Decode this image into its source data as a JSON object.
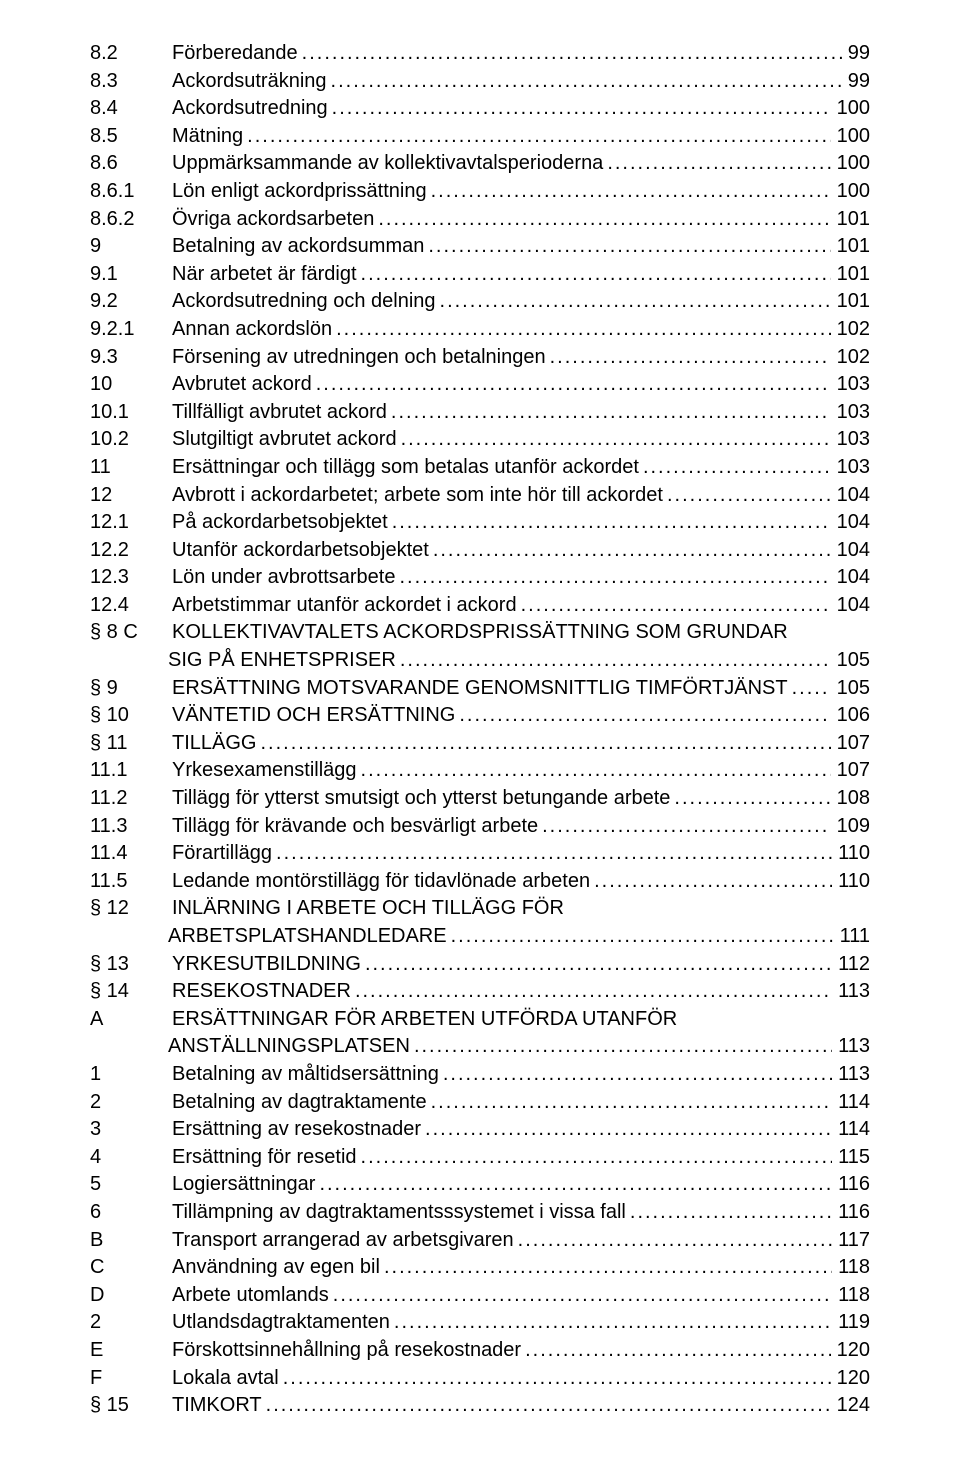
{
  "toc": [
    {
      "num": "8.2",
      "title": "Förberedande",
      "page": "99"
    },
    {
      "num": "8.3",
      "title": "Ackordsuträkning",
      "page": "99"
    },
    {
      "num": "8.4",
      "title": "Ackordsutredning",
      "page": "100"
    },
    {
      "num": "8.5",
      "title": "Mätning",
      "page": "100"
    },
    {
      "num": "8.6",
      "title": "Uppmärksammande av kollektivavtalsperioderna",
      "page": "100"
    },
    {
      "num": "8.6.1",
      "title": "Lön enligt ackordprissättning",
      "page": "100"
    },
    {
      "num": "8.6.2",
      "title": "Övriga ackordsarbeten",
      "page": "101"
    },
    {
      "num": "9",
      "title": "Betalning av ackordsumman",
      "page": "101"
    },
    {
      "num": "9.1",
      "title": "När arbetet är färdigt",
      "page": "101"
    },
    {
      "num": "9.2",
      "title": "Ackordsutredning och delning",
      "page": "101"
    },
    {
      "num": "9.2.1",
      "title": "Annan ackordslön",
      "page": "102"
    },
    {
      "num": "9.3",
      "title": "Försening av utredningen och betalningen",
      "page": "102"
    },
    {
      "num": "10",
      "title": "Avbrutet ackord",
      "page": "103"
    },
    {
      "num": "10.1",
      "title": "Tillfälligt avbrutet ackord",
      "page": "103"
    },
    {
      "num": "10.2",
      "title": "Slutgiltigt avbrutet ackord",
      "page": "103"
    },
    {
      "num": "11",
      "title": "Ersättningar och tillägg som betalas utanför ackordet",
      "page": "103"
    },
    {
      "num": "12",
      "title": "Avbrott i ackordarbetet; arbete som inte hör till ackordet",
      "page": "104"
    },
    {
      "num": "12.1",
      "title": "På ackordarbetsobjektet",
      "page": "104"
    },
    {
      "num": "12.2",
      "title": "Utanför ackordarbetsobjektet",
      "page": "104"
    },
    {
      "num": "12.3",
      "title": "Lön under avbrottsarbete",
      "page": "104"
    },
    {
      "num": "12.4",
      "title": "Arbetstimmar utanför ackordet i ackord",
      "page": "104"
    },
    {
      "num": "§ 8 C",
      "title": "KOLLEKTIVAVTALETS ACKORDSPRISSÄTTNING SOM GRUNDAR",
      "cont": "SIG PÅ ENHETSPRISER",
      "page": "105"
    },
    {
      "num": "§ 9",
      "title": "ERSÄTTNING MOTSVARANDE GENOMSNITTLIG TIMFÖRTJÄNST",
      "page": "105"
    },
    {
      "num": "§ 10",
      "title": "VÄNTETID OCH ERSÄTTNING",
      "page": "106"
    },
    {
      "num": "§ 11",
      "title": "TILLÄGG",
      "page": "107"
    },
    {
      "num": "11.1",
      "title": "Yrkesexamenstillägg",
      "page": "107"
    },
    {
      "num": "11.2",
      "title": "Tillägg för ytterst smutsigt och ytterst betungande arbete",
      "page": "108"
    },
    {
      "num": "11.3",
      "title": "Tillägg för krävande och besvärligt arbete",
      "page": "109"
    },
    {
      "num": "11.4",
      "title": "Förartillägg",
      "page": "110"
    },
    {
      "num": "11.5",
      "title": "Ledande montörstillägg för tidavlönade arbeten",
      "page": "110"
    },
    {
      "num": "§ 12",
      "title": "INLÄRNING I ARBETE OCH TILLÄGG FÖR",
      "cont": "ARBETSPLATSHANDLEDARE",
      "page": "111"
    },
    {
      "num": "§ 13",
      "title": "YRKESUTBILDNING",
      "page": "112"
    },
    {
      "num": "§ 14",
      "title": "RESEKOSTNADER",
      "page": "113"
    },
    {
      "num": "A",
      "title": "ERSÄTTNINGAR FÖR ARBETEN UTFÖRDA UTANFÖR",
      "cont": "ANSTÄLLNINGSPLATSEN",
      "page": "113"
    },
    {
      "num": "1",
      "title": "Betalning av måltidsersättning",
      "page": "113"
    },
    {
      "num": "2",
      "title": "Betalning av dagtraktamente",
      "page": "114"
    },
    {
      "num": "3",
      "title": "Ersättning av resekostnader",
      "page": "114"
    },
    {
      "num": "4",
      "title": "Ersättning för resetid",
      "page": "115"
    },
    {
      "num": "5",
      "title": "Logiersättningar",
      "page": "116"
    },
    {
      "num": "6",
      "title": "Tillämpning av dagtraktamentsssystemet i vissa fall",
      "page": "116"
    },
    {
      "num": "B",
      "title": "Transport arrangerad av arbetsgivaren",
      "page": "117"
    },
    {
      "num": "C",
      "title": "Användning av egen bil",
      "page": "118"
    },
    {
      "num": "D",
      "title": "Arbete utomlands",
      "page": "118"
    },
    {
      "num": "2",
      "title": "Utlandsdagtraktamenten",
      "page": "119"
    },
    {
      "num": "E",
      "title": "Förskottsinnehållning på resekostnader",
      "page": "120"
    },
    {
      "num": "F",
      "title": "Lokala avtal",
      "page": "120"
    },
    {
      "num": "§ 15",
      "title": "TIMKORT",
      "page": "124"
    }
  ]
}
